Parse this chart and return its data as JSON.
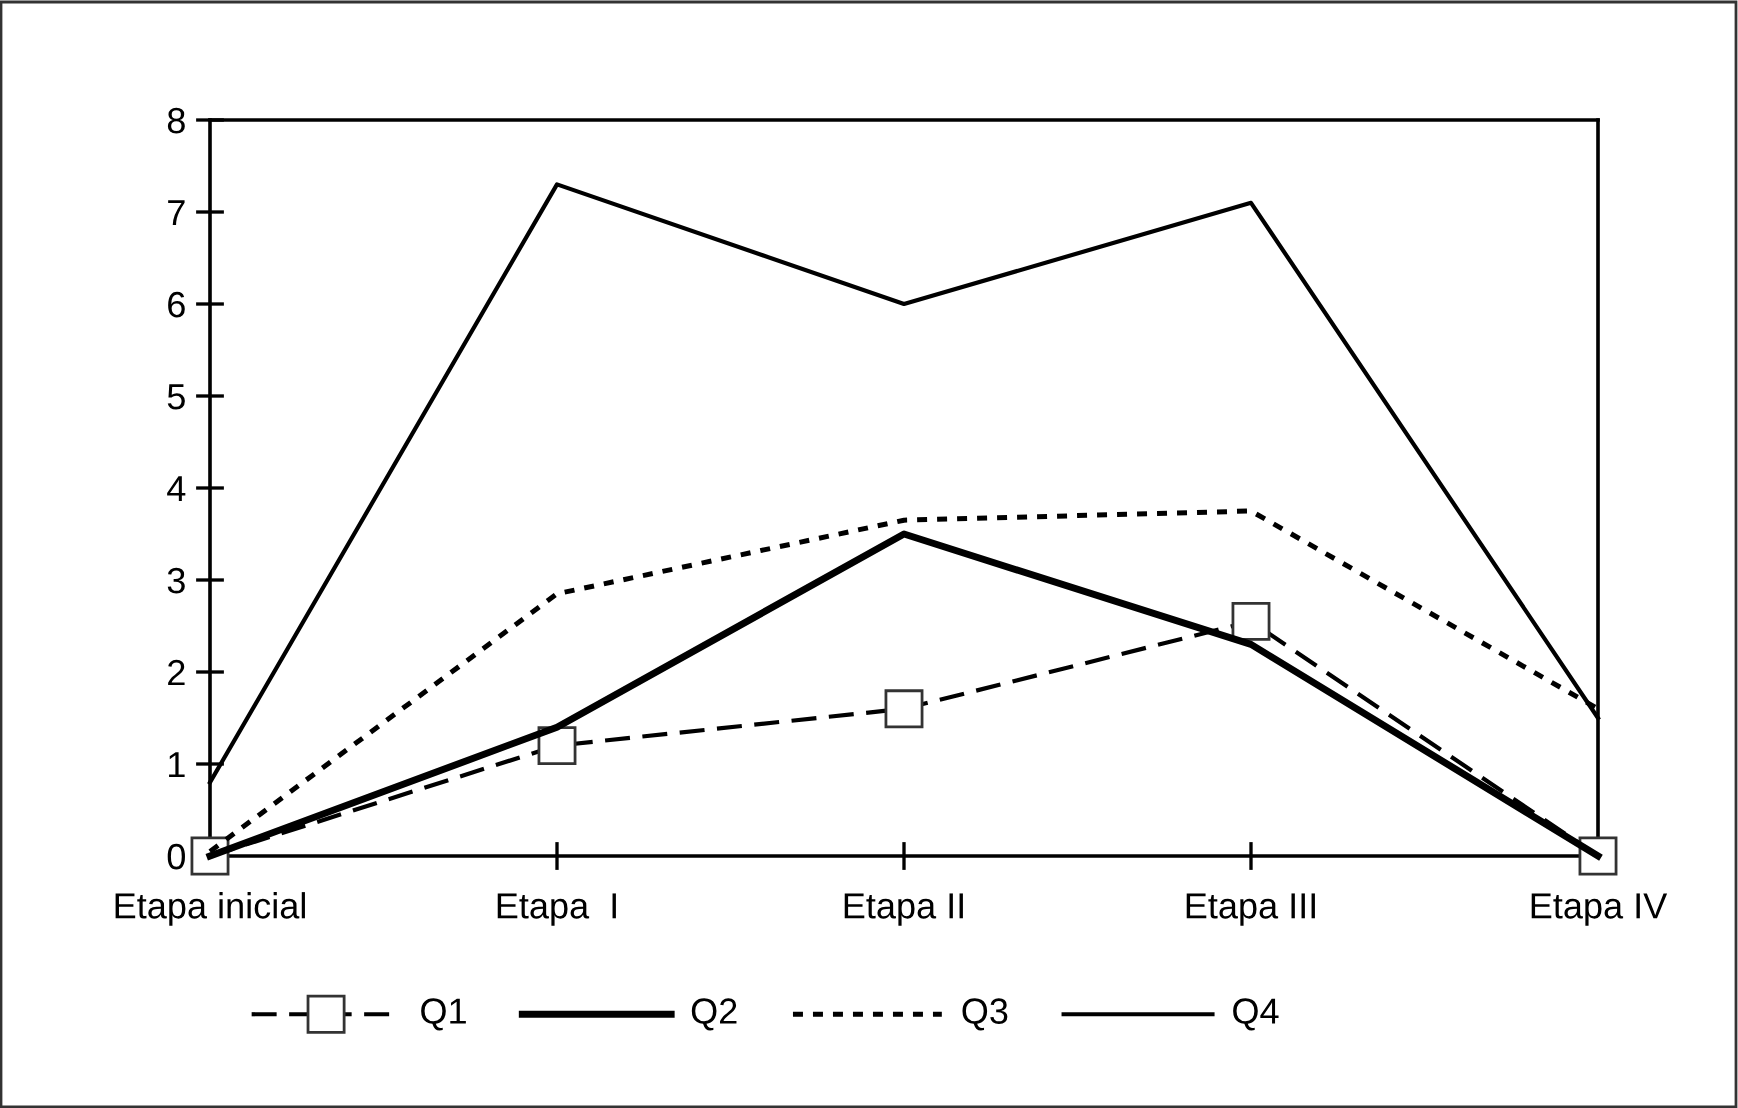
{
  "chart_data": {
    "type": "line",
    "categories": [
      "Etapa inicial",
      "Etapa  I",
      "Etapa II",
      "Etapa III",
      "Etapa IV"
    ],
    "ylim": [
      0,
      8
    ],
    "yticks": [
      0,
      1,
      2,
      3,
      4,
      5,
      6,
      7,
      8
    ],
    "grid": false,
    "legend": "bottom",
    "series": [
      {
        "name": "Q1",
        "color": "#000000",
        "line_style": "dashed",
        "marker": "square",
        "values": [
          0,
          1.2,
          1.6,
          2.55,
          0
        ]
      },
      {
        "name": "Q2",
        "color": "#000000",
        "line_style": "solid",
        "marker": "none",
        "values": [
          0,
          1.4,
          3.5,
          2.3,
          0
        ]
      },
      {
        "name": "Q3",
        "color": "#000000",
        "line_style": "dotted",
        "marker": "none",
        "values": [
          0.05,
          2.85,
          3.65,
          3.75,
          1.6
        ]
      },
      {
        "name": "Q4",
        "color": "#000000",
        "line_style": "solid",
        "marker": "none",
        "values": [
          0.8,
          7.3,
          6.0,
          7.1,
          1.5
        ]
      }
    ]
  }
}
